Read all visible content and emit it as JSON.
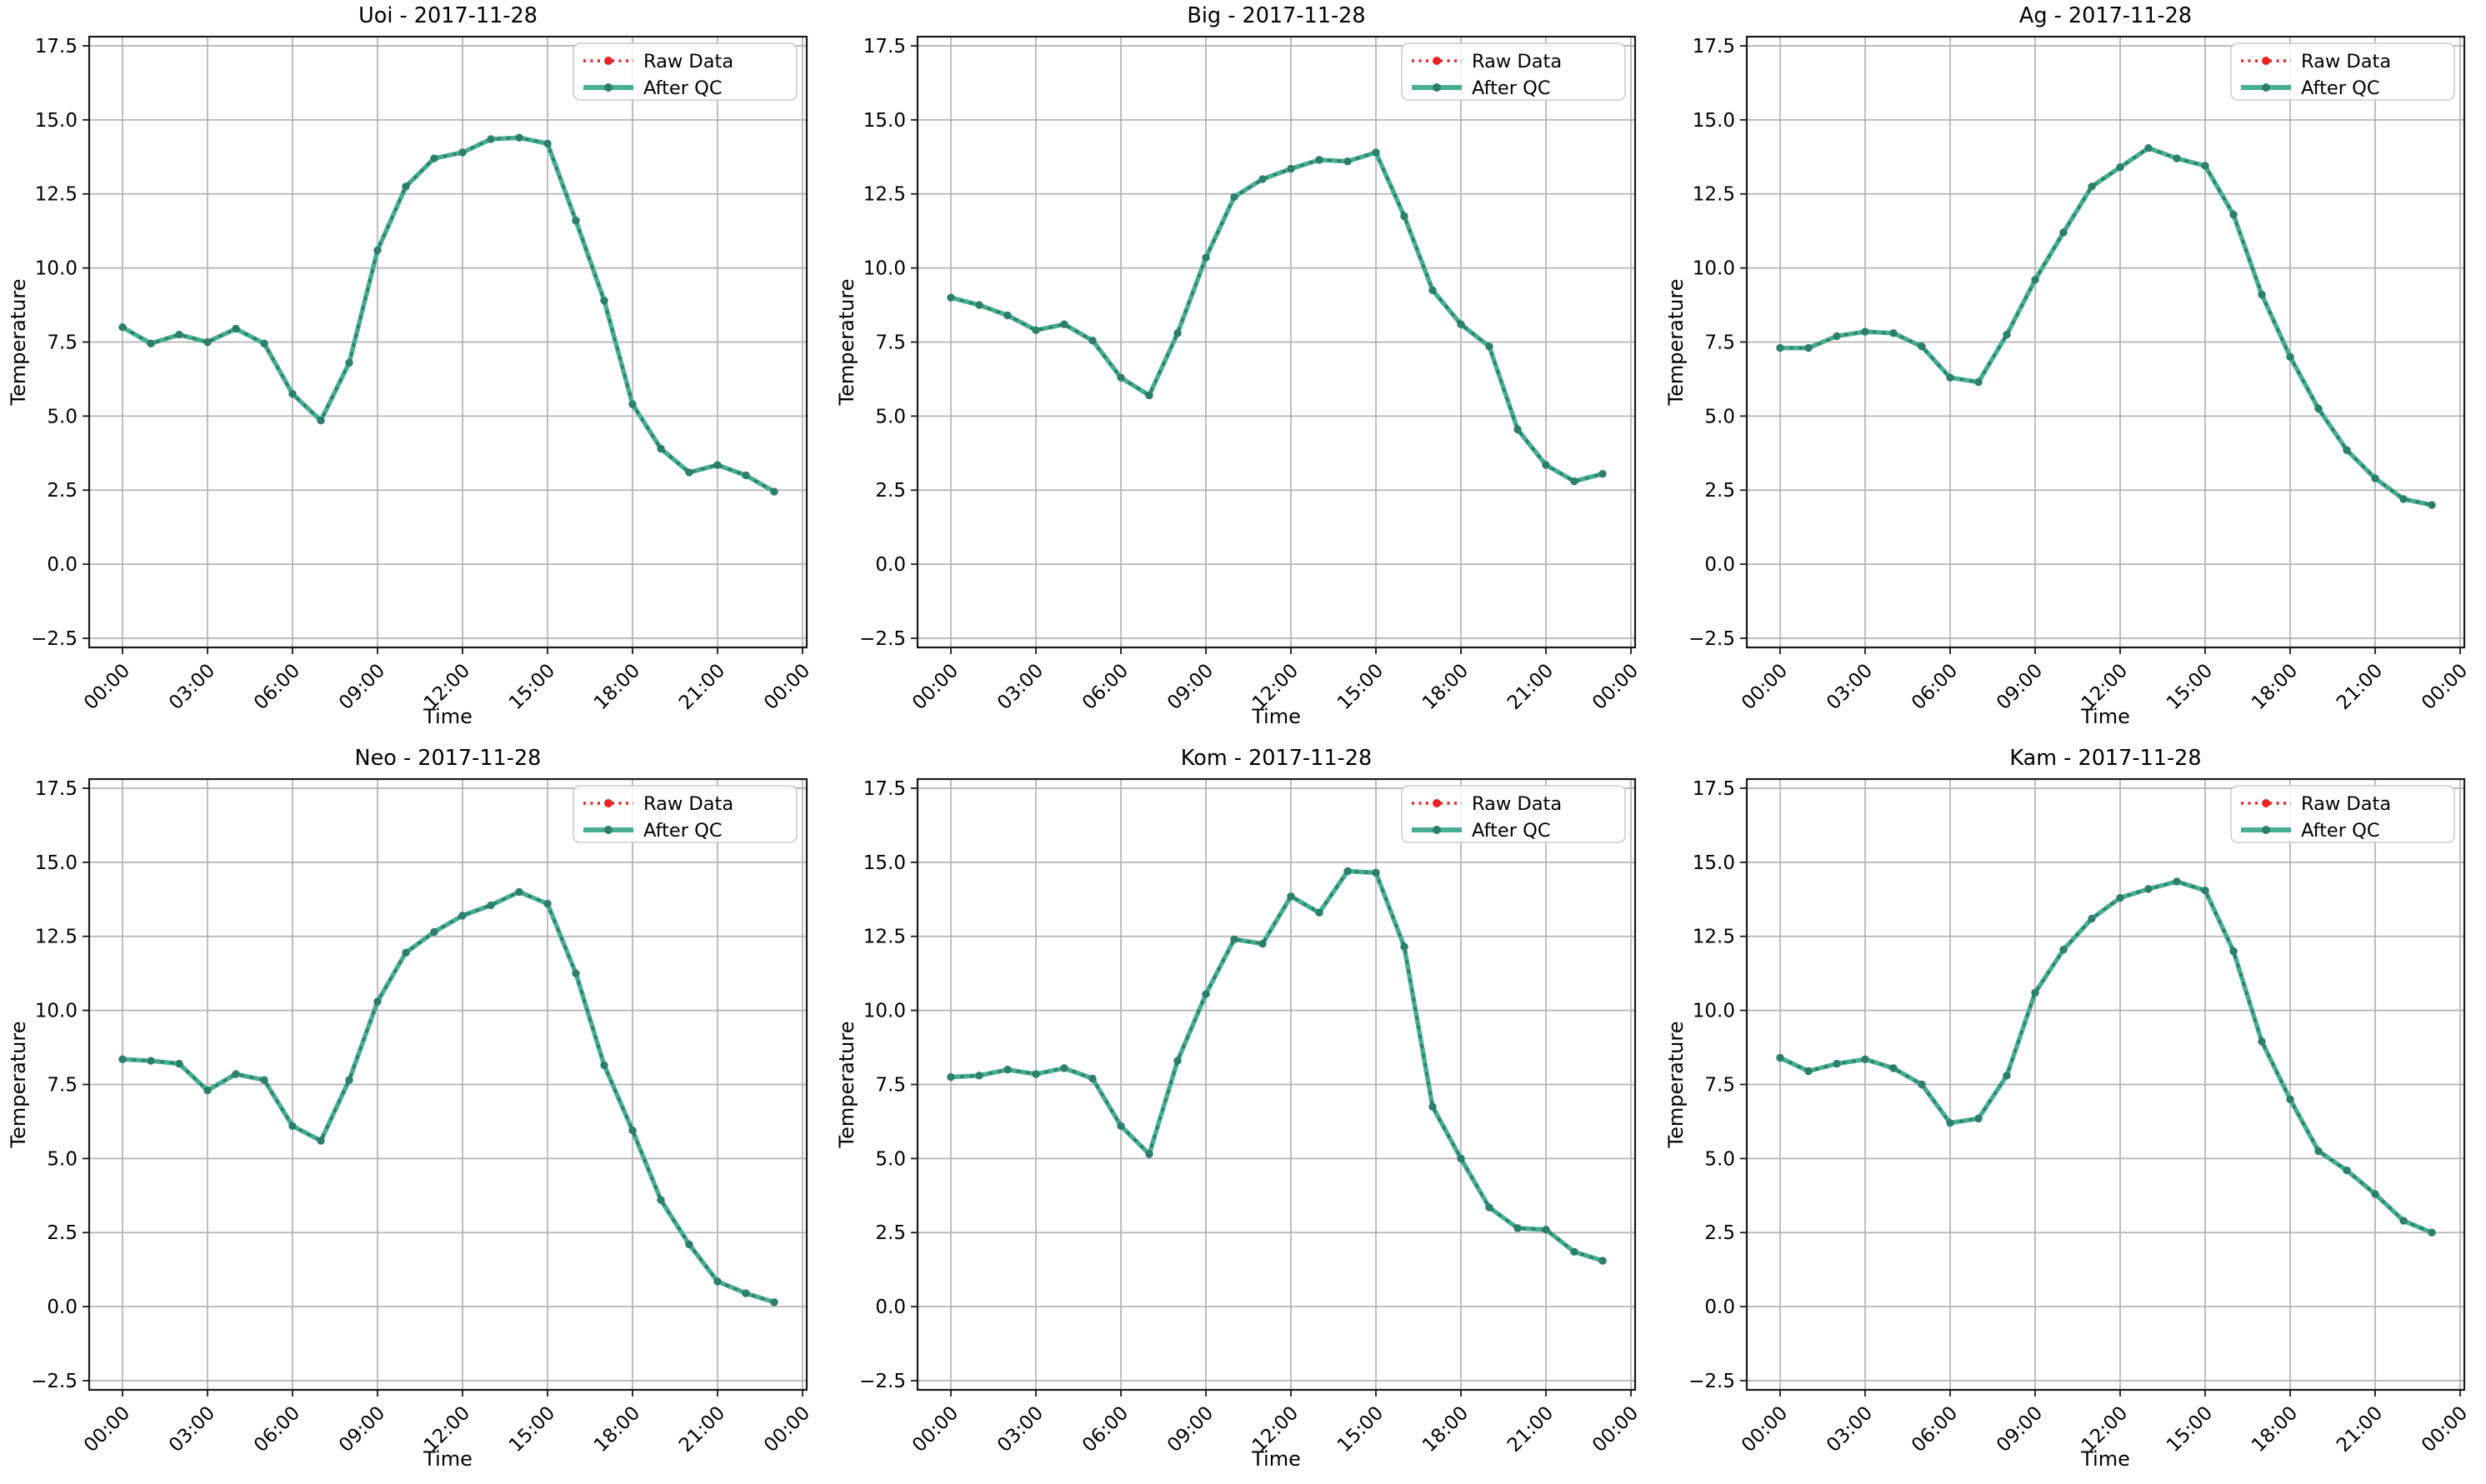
{
  "figure": {
    "rows": 2,
    "columns": 3,
    "background": "#ffffff"
  },
  "palette": {
    "background": "#ffffff",
    "grid": "#b3b3b3",
    "spine": "#1a1a1a",
    "text": "#000000",
    "raw_red": "#e62325",
    "qc_teal": "#47ae92",
    "qc_dark": "#2c7f6a",
    "legend_border": "#cccccc"
  },
  "chart_data": [
    {
      "type": "line",
      "station": "Uoi",
      "date": "2017-11-28",
      "title": "Uoi - 2017-11-28",
      "xlabel": "Time",
      "ylabel": "Temperature",
      "grid": true,
      "legend": {
        "position": "upper right",
        "entries": [
          "Raw Data",
          "After QC"
        ]
      },
      "x_hours": [
        0,
        1,
        2,
        3,
        4,
        5,
        6,
        7,
        8,
        9,
        10,
        11,
        12,
        13,
        14,
        15,
        16,
        17,
        18,
        19,
        20,
        21,
        22,
        23
      ],
      "xtick_hours": [
        0,
        3,
        6,
        9,
        12,
        15,
        18,
        21,
        24
      ],
      "xtick_labels": [
        "00:00",
        "03:00",
        "06:00",
        "09:00",
        "12:00",
        "15:00",
        "18:00",
        "21:00",
        "00:00"
      ],
      "ytick_values": [
        17.5,
        15.0,
        12.5,
        10.0,
        7.5,
        5.0,
        2.5,
        0.0,
        -2.5
      ],
      "ytick_labels": [
        "17.5",
        "15.0",
        "12.5",
        "10.0",
        "7.5",
        "5.0",
        "2.5",
        "0.0",
        "−2.5"
      ],
      "ylim": [
        -2.81,
        17.81
      ],
      "series": [
        {
          "name": "Raw Data",
          "color": "#e62325",
          "linestyle": "dotted",
          "marker": "o",
          "values": [
            8.0,
            7.45,
            7.75,
            7.5,
            7.95,
            7.45,
            5.75,
            4.85,
            6.8,
            10.6,
            12.75,
            13.7,
            13.9,
            14.35,
            14.4,
            14.2,
            11.6,
            8.9,
            5.4,
            3.9,
            3.1,
            3.35,
            3.0,
            2.45
          ]
        },
        {
          "name": "After QC",
          "color": "#47ae92",
          "marker_color": "#2c7f6a",
          "linestyle": "solid",
          "marker": "o",
          "values": [
            8.0,
            7.45,
            7.75,
            7.5,
            7.95,
            7.45,
            5.75,
            4.85,
            6.8,
            10.6,
            12.75,
            13.7,
            13.9,
            14.35,
            14.4,
            14.2,
            11.6,
            8.9,
            5.4,
            3.9,
            3.1,
            3.35,
            3.0,
            2.45
          ]
        }
      ]
    },
    {
      "type": "line",
      "station": "Big",
      "date": "2017-11-28",
      "title": "Big - 2017-11-28",
      "xlabel": "Time",
      "ylabel": "Temperature",
      "grid": true,
      "legend": {
        "position": "upper right",
        "entries": [
          "Raw Data",
          "After QC"
        ]
      },
      "x_hours": [
        0,
        1,
        2,
        3,
        4,
        5,
        6,
        7,
        8,
        9,
        10,
        11,
        12,
        13,
        14,
        15,
        16,
        17,
        18,
        19,
        20,
        21,
        22,
        23
      ],
      "xtick_hours": [
        0,
        3,
        6,
        9,
        12,
        15,
        18,
        21,
        24
      ],
      "xtick_labels": [
        "00:00",
        "03:00",
        "06:00",
        "09:00",
        "12:00",
        "15:00",
        "18:00",
        "21:00",
        "00:00"
      ],
      "ytick_values": [
        17.5,
        15.0,
        12.5,
        10.0,
        7.5,
        5.0,
        2.5,
        0.0,
        -2.5
      ],
      "ytick_labels": [
        "17.5",
        "15.0",
        "12.5",
        "10.0",
        "7.5",
        "5.0",
        "2.5",
        "0.0",
        "−2.5"
      ],
      "ylim": [
        -2.81,
        17.81
      ],
      "series": [
        {
          "name": "Raw Data",
          "color": "#e62325",
          "linestyle": "dotted",
          "marker": "o",
          "values": [
            9.0,
            8.75,
            8.4,
            7.9,
            8.1,
            7.55,
            6.3,
            5.7,
            7.8,
            10.35,
            12.4,
            13.0,
            13.35,
            13.65,
            13.6,
            13.9,
            11.75,
            9.25,
            8.1,
            7.35,
            4.55,
            3.35,
            2.8,
            3.05
          ]
        },
        {
          "name": "After QC",
          "color": "#47ae92",
          "marker_color": "#2c7f6a",
          "linestyle": "solid",
          "marker": "o",
          "values": [
            9.0,
            8.75,
            8.4,
            7.9,
            8.1,
            7.55,
            6.3,
            5.7,
            7.8,
            10.35,
            12.4,
            13.0,
            13.35,
            13.65,
            13.6,
            13.9,
            11.75,
            9.25,
            8.1,
            7.35,
            4.55,
            3.35,
            2.8,
            3.05
          ]
        }
      ]
    },
    {
      "type": "line",
      "station": "Ag",
      "date": "2017-11-28",
      "title": "Ag - 2017-11-28",
      "xlabel": "Time",
      "ylabel": "Temperature",
      "grid": true,
      "legend": {
        "position": "upper right",
        "entries": [
          "Raw Data",
          "After QC"
        ]
      },
      "x_hours": [
        0,
        1,
        2,
        3,
        4,
        5,
        6,
        7,
        8,
        9,
        10,
        11,
        12,
        13,
        14,
        15,
        16,
        17,
        18,
        19,
        20,
        21,
        22,
        23
      ],
      "xtick_hours": [
        0,
        3,
        6,
        9,
        12,
        15,
        18,
        21,
        24
      ],
      "xtick_labels": [
        "00:00",
        "03:00",
        "06:00",
        "09:00",
        "12:00",
        "15:00",
        "18:00",
        "21:00",
        "00:00"
      ],
      "ytick_values": [
        17.5,
        15.0,
        12.5,
        10.0,
        7.5,
        5.0,
        2.5,
        0.0,
        -2.5
      ],
      "ytick_labels": [
        "17.5",
        "15.0",
        "12.5",
        "10.0",
        "7.5",
        "5.0",
        "2.5",
        "0.0",
        "−2.5"
      ],
      "ylim": [
        -2.81,
        17.81
      ],
      "series": [
        {
          "name": "Raw Data",
          "color": "#e62325",
          "linestyle": "dotted",
          "marker": "o",
          "values": [
            7.3,
            7.3,
            7.7,
            7.85,
            7.8,
            7.35,
            6.3,
            6.15,
            7.75,
            9.6,
            11.2,
            12.75,
            13.4,
            14.05,
            13.7,
            13.45,
            11.8,
            9.1,
            7.0,
            5.25,
            3.85,
            2.9,
            2.2,
            2.0
          ]
        },
        {
          "name": "After QC",
          "color": "#47ae92",
          "marker_color": "#2c7f6a",
          "linestyle": "solid",
          "marker": "o",
          "values": [
            7.3,
            7.3,
            7.7,
            7.85,
            7.8,
            7.35,
            6.3,
            6.15,
            7.75,
            9.6,
            11.2,
            12.75,
            13.4,
            14.05,
            13.7,
            13.45,
            11.8,
            9.1,
            7.0,
            5.25,
            3.85,
            2.9,
            2.2,
            2.0
          ]
        }
      ]
    },
    {
      "type": "line",
      "station": "Neo",
      "date": "2017-11-28",
      "title": "Neo - 2017-11-28",
      "xlabel": "Time",
      "ylabel": "Temperature",
      "grid": true,
      "legend": {
        "position": "upper right",
        "entries": [
          "Raw Data",
          "After QC"
        ]
      },
      "x_hours": [
        0,
        1,
        2,
        3,
        4,
        5,
        6,
        7,
        8,
        9,
        10,
        11,
        12,
        13,
        14,
        15,
        16,
        17,
        18,
        19,
        20,
        21,
        22,
        23
      ],
      "xtick_hours": [
        0,
        3,
        6,
        9,
        12,
        15,
        18,
        21,
        24
      ],
      "xtick_labels": [
        "00:00",
        "03:00",
        "06:00",
        "09:00",
        "12:00",
        "15:00",
        "18:00",
        "21:00",
        "00:00"
      ],
      "ytick_values": [
        17.5,
        15.0,
        12.5,
        10.0,
        7.5,
        5.0,
        2.5,
        0.0,
        -2.5
      ],
      "ytick_labels": [
        "17.5",
        "15.0",
        "12.5",
        "10.0",
        "7.5",
        "5.0",
        "2.5",
        "0.0",
        "−2.5"
      ],
      "ylim": [
        -2.81,
        17.81
      ],
      "series": [
        {
          "name": "Raw Data",
          "color": "#e62325",
          "linestyle": "dotted",
          "marker": "o",
          "values": [
            8.35,
            8.3,
            8.2,
            7.3,
            7.85,
            7.65,
            6.1,
            5.6,
            7.65,
            10.3,
            11.95,
            12.65,
            13.2,
            13.55,
            14.0,
            13.6,
            11.25,
            8.15,
            5.95,
            3.6,
            2.1,
            0.85,
            0.45,
            0.15
          ]
        },
        {
          "name": "After QC",
          "color": "#47ae92",
          "marker_color": "#2c7f6a",
          "linestyle": "solid",
          "marker": "o",
          "values": [
            8.35,
            8.3,
            8.2,
            7.3,
            7.85,
            7.65,
            6.1,
            5.6,
            7.65,
            10.3,
            11.95,
            12.65,
            13.2,
            13.55,
            14.0,
            13.6,
            11.25,
            8.15,
            5.95,
            3.6,
            2.1,
            0.85,
            0.45,
            0.15
          ]
        }
      ]
    },
    {
      "type": "line",
      "station": "Kom",
      "date": "2017-11-28",
      "title": "Kom - 2017-11-28",
      "xlabel": "Time",
      "ylabel": "Temperature",
      "grid": true,
      "legend": {
        "position": "upper right",
        "entries": [
          "Raw Data",
          "After QC"
        ]
      },
      "x_hours": [
        0,
        1,
        2,
        3,
        4,
        5,
        6,
        7,
        8,
        9,
        10,
        11,
        12,
        13,
        14,
        15,
        16,
        17,
        18,
        19,
        20,
        21,
        22,
        23
      ],
      "xtick_hours": [
        0,
        3,
        6,
        9,
        12,
        15,
        18,
        21,
        24
      ],
      "xtick_labels": [
        "00:00",
        "03:00",
        "06:00",
        "09:00",
        "12:00",
        "15:00",
        "18:00",
        "21:00",
        "00:00"
      ],
      "ytick_values": [
        17.5,
        15.0,
        12.5,
        10.0,
        7.5,
        5.0,
        2.5,
        0.0,
        -2.5
      ],
      "ytick_labels": [
        "17.5",
        "15.0",
        "12.5",
        "10.0",
        "7.5",
        "5.0",
        "2.5",
        "0.0",
        "−2.5"
      ],
      "ylim": [
        -2.81,
        17.81
      ],
      "series": [
        {
          "name": "Raw Data",
          "color": "#e62325",
          "linestyle": "dotted",
          "marker": "o",
          "values": [
            7.75,
            7.8,
            8.0,
            7.85,
            8.05,
            7.7,
            6.1,
            5.15,
            8.3,
            10.55,
            12.4,
            12.25,
            13.85,
            13.3,
            14.7,
            14.65,
            12.15,
            6.75,
            5.0,
            3.35,
            2.65,
            2.6,
            1.85,
            1.55
          ]
        },
        {
          "name": "After QC",
          "color": "#47ae92",
          "marker_color": "#2c7f6a",
          "linestyle": "solid",
          "marker": "o",
          "values": [
            7.75,
            7.8,
            8.0,
            7.85,
            8.05,
            7.7,
            6.1,
            5.15,
            8.3,
            10.55,
            12.4,
            12.25,
            13.85,
            13.3,
            14.7,
            14.65,
            12.15,
            6.75,
            5.0,
            3.35,
            2.65,
            2.6,
            1.85,
            1.55
          ]
        }
      ]
    },
    {
      "type": "line",
      "station": "Kam",
      "date": "2017-11-28",
      "title": "Kam - 2017-11-28",
      "xlabel": "Time",
      "ylabel": "Temperature",
      "grid": true,
      "legend": {
        "position": "upper right",
        "entries": [
          "Raw Data",
          "After QC"
        ]
      },
      "x_hours": [
        0,
        1,
        2,
        3,
        4,
        5,
        6,
        7,
        8,
        9,
        10,
        11,
        12,
        13,
        14,
        15,
        16,
        17,
        18,
        19,
        20,
        21,
        22,
        23
      ],
      "xtick_hours": [
        0,
        3,
        6,
        9,
        12,
        15,
        18,
        21,
        24
      ],
      "xtick_labels": [
        "00:00",
        "03:00",
        "06:00",
        "09:00",
        "12:00",
        "15:00",
        "18:00",
        "21:00",
        "00:00"
      ],
      "ytick_values": [
        17.5,
        15.0,
        12.5,
        10.0,
        7.5,
        5.0,
        2.5,
        0.0,
        -2.5
      ],
      "ytick_labels": [
        "17.5",
        "15.0",
        "12.5",
        "10.0",
        "7.5",
        "5.0",
        "2.5",
        "0.0",
        "−2.5"
      ],
      "ylim": [
        -2.81,
        17.81
      ],
      "series": [
        {
          "name": "Raw Data",
          "color": "#e62325",
          "linestyle": "dotted",
          "marker": "o",
          "values": [
            8.4,
            7.95,
            8.2,
            8.35,
            8.05,
            7.5,
            6.2,
            6.35,
            7.8,
            10.6,
            12.05,
            13.1,
            13.8,
            14.1,
            14.35,
            14.05,
            12.0,
            8.95,
            7.0,
            5.25,
            4.6,
            3.8,
            2.9,
            2.5
          ]
        },
        {
          "name": "After QC",
          "color": "#47ae92",
          "marker_color": "#2c7f6a",
          "linestyle": "solid",
          "marker": "o",
          "values": [
            8.4,
            7.95,
            8.2,
            8.35,
            8.05,
            7.5,
            6.2,
            6.35,
            7.8,
            10.6,
            12.05,
            13.1,
            13.8,
            14.1,
            14.35,
            14.05,
            12.0,
            8.95,
            7.0,
            5.25,
            4.6,
            3.8,
            2.9,
            2.5
          ]
        }
      ]
    }
  ]
}
